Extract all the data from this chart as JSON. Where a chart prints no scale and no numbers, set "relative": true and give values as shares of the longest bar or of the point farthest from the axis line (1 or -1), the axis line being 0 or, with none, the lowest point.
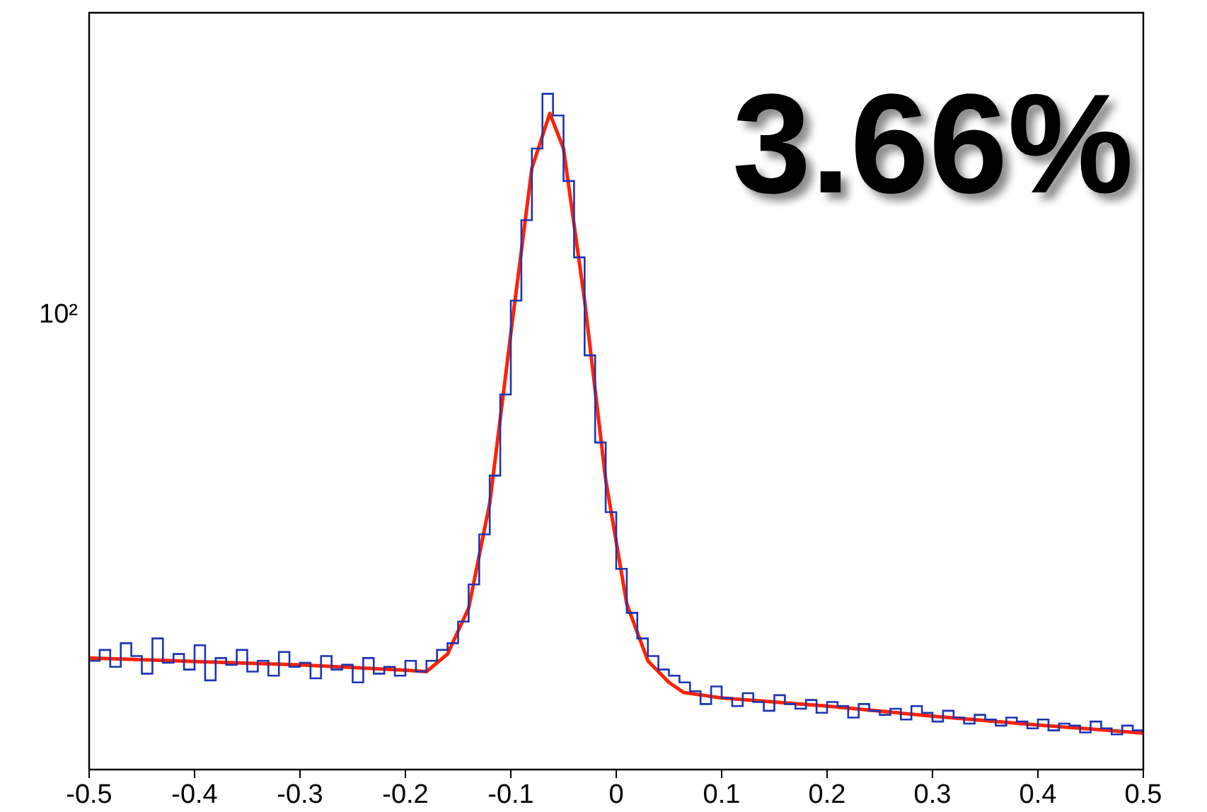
{
  "chart_data": {
    "type": "histogram",
    "relative": true,
    "grid": false,
    "marker": "none",
    "xlim": [
      -0.5,
      0.5
    ],
    "xticks": [
      -0.5,
      -0.4,
      -0.3,
      -0.2,
      -0.1,
      0,
      0.1,
      0.2,
      0.3,
      0.4,
      0.5
    ],
    "bins": [
      -0.5,
      -0.49,
      -0.48,
      -0.47,
      -0.46,
      -0.45,
      -0.44,
      -0.43,
      -0.42,
      -0.41,
      -0.4,
      -0.39,
      -0.38,
      -0.37,
      -0.36,
      -0.35,
      -0.34,
      -0.33,
      -0.32,
      -0.31,
      -0.3,
      -0.29,
      -0.28,
      -0.27,
      -0.26,
      -0.25,
      -0.24,
      -0.23,
      -0.22,
      -0.21,
      -0.2,
      -0.19,
      -0.18,
      -0.17,
      -0.16,
      -0.15,
      -0.14,
      -0.13,
      -0.12,
      -0.11,
      -0.1,
      -0.09,
      -0.08,
      -0.07,
      -0.06,
      -0.05,
      -0.04,
      -0.03,
      -0.02,
      -0.01,
      0,
      0.01,
      0.02,
      0.03,
      0.04,
      0.05,
      0.06,
      0.07,
      0.08,
      0.09,
      0.1,
      0.11,
      0.12,
      0.13,
      0.14,
      0.15,
      0.16,
      0.17,
      0.18,
      0.19,
      0.2,
      0.21,
      0.22,
      0.23,
      0.24,
      0.25,
      0.26,
      0.27,
      0.28,
      0.29,
      0.3,
      0.31,
      0.32,
      0.33,
      0.34,
      0.35,
      0.36,
      0.37,
      0.38,
      0.39,
      0.4,
      0.41,
      0.42,
      0.43,
      0.44,
      0.45,
      0.46,
      0.47,
      0.48,
      0.49,
      0.5
    ],
    "series": [
      {
        "type": "histogram",
        "color": "#1c34b4",
        "values": [
          0.161,
          0.177,
          0.152,
          0.187,
          0.168,
          0.142,
          0.194,
          0.158,
          0.171,
          0.148,
          0.184,
          0.132,
          0.165,
          0.155,
          0.177,
          0.145,
          0.161,
          0.139,
          0.174,
          0.152,
          0.158,
          0.135,
          0.168,
          0.148,
          0.155,
          0.129,
          0.165,
          0.142,
          0.152,
          0.139,
          0.161,
          0.145,
          0.161,
          0.177,
          0.187,
          0.219,
          0.274,
          0.348,
          0.435,
          0.555,
          0.694,
          0.813,
          0.919,
          1,
          0.968,
          0.871,
          0.758,
          0.613,
          0.484,
          0.381,
          0.297,
          0.232,
          0.194,
          0.168,
          0.148,
          0.139,
          0.129,
          0.116,
          0.097,
          0.123,
          0.106,
          0.094,
          0.113,
          0.1,
          0.087,
          0.11,
          0.097,
          0.09,
          0.103,
          0.084,
          0.1,
          0.094,
          0.077,
          0.097,
          0.087,
          0.081,
          0.09,
          0.074,
          0.094,
          0.084,
          0.071,
          0.087,
          0.077,
          0.068,
          0.081,
          0.074,
          0.065,
          0.077,
          0.071,
          0.061,
          0.074,
          0.058,
          0.068,
          0.065,
          0.055,
          0.071,
          0.061,
          0.052,
          0.065,
          0.058
        ]
      },
      {
        "type": "line",
        "color": "#ff2200",
        "x": [
          -0.5,
          -0.4,
          -0.3,
          -0.2,
          -0.18,
          -0.16,
          -0.14,
          -0.12,
          -0.1,
          -0.08,
          -0.063,
          -0.05,
          -0.03,
          -0.01,
          0.01,
          0.03,
          0.05,
          0.064,
          0.1,
          0.2,
          0.3,
          0.4,
          0.5
        ],
        "values": [
          0.165,
          0.16,
          0.155,
          0.147,
          0.145,
          0.171,
          0.239,
          0.394,
          0.645,
          0.89,
          0.971,
          0.919,
          0.694,
          0.429,
          0.245,
          0.161,
          0.129,
          0.114,
          0.106,
          0.094,
          0.079,
          0.066,
          0.054
        ]
      }
    ],
    "annotations": [
      "3.66%",
      "10²"
    ]
  }
}
